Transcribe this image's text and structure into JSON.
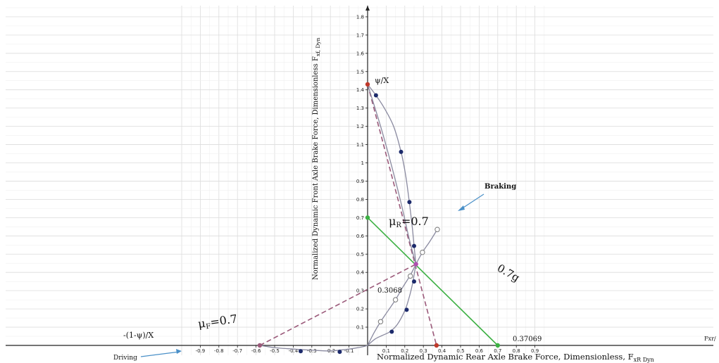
{
  "chart_data": {
    "type": "scatter",
    "xlabel": "Normalized Dynamic Rear Axle Brake Force, Dimensionless, F",
    "xlabel_sub": "xR Dyn",
    "x_axis_end_label": "Fxr/",
    "ylabel": "Normalized Dynamic Front Axle Brake Force, Dimensionless F",
    "ylabel_sub": "xf, Dyn",
    "xlim": [
      -1.0,
      0.97
    ],
    "ylim": [
      -0.1,
      1.82
    ],
    "x_ticks": [
      -0.9,
      -0.8,
      -0.7,
      -0.6,
      -0.5,
      -0.4,
      -0.3,
      -0.2,
      -0.1,
      0.1,
      0.2,
      0.3,
      0.4,
      0.5,
      0.6,
      0.7,
      0.8,
      0.9
    ],
    "x_tick_labels": [
      "-0.9",
      "-0.8",
      "-0.7",
      "-0.6",
      "-0.5",
      "-0.4",
      "-0.3",
      "-0.2",
      "-0.1",
      "0.1",
      "0.2",
      "0.3",
      "0.4",
      "0.5",
      "0.6",
      "0.7",
      "0.8",
      "0.9"
    ],
    "y_ticks": [
      0.1,
      0.2,
      0.3,
      0.4,
      0.5,
      0.6,
      0.7,
      0.8,
      0.9,
      1,
      1.1,
      1.2,
      1.3,
      1.4,
      1.5,
      1.6,
      1.7,
      1.8
    ],
    "y_tick_labels": [
      "0.1",
      "0.2",
      "0.3",
      "0.4",
      "0.5",
      "0.6",
      "0.7",
      "0.8",
      "0.9",
      "1",
      "1.1",
      "1.2",
      "1.3",
      "1.4",
      "1.5",
      "1.6",
      "1.7",
      "1.8"
    ],
    "grid": true,
    "lines": [
      {
        "key": "mu_r_line",
        "style": "solid",
        "color": "#3cb043",
        "points": [
          [
            0,
            0.7
          ],
          [
            0.7,
            0
          ]
        ]
      },
      {
        "key": "front_diag",
        "style": "dashed",
        "color": "#9b5a7a",
        "points": [
          [
            0,
            1.43
          ],
          [
            0.37069,
            0
          ]
        ]
      },
      {
        "key": "mu_f_line",
        "style": "dashed",
        "color": "#9b5a7a",
        "points": [
          [
            -0.58,
            0
          ],
          [
            0.26,
            0.445
          ]
        ]
      }
    ],
    "curves": [
      {
        "key": "braking_upper",
        "color": "#8a8aa0",
        "points": [
          [
            0,
            1.43
          ],
          [
            0.045,
            1.37
          ],
          [
            0.09,
            1.3
          ],
          [
            0.14,
            1.2
          ],
          [
            0.18,
            1.06
          ],
          [
            0.205,
            0.93
          ],
          [
            0.225,
            0.78
          ],
          [
            0.24,
            0.65
          ],
          [
            0.25,
            0.545
          ],
          [
            0.26,
            0.445
          ]
        ]
      },
      {
        "key": "braking_lower",
        "color": "#8a8aa0",
        "points": [
          [
            0,
            1.43
          ],
          [
            0.07,
            1.2
          ],
          [
            0.13,
            0.98
          ],
          [
            0.18,
            0.78
          ],
          [
            0.22,
            0.6
          ],
          [
            0.245,
            0.5
          ],
          [
            0.26,
            0.445
          ]
        ]
      },
      {
        "key": "from_origin",
        "color": "#8a8aa0",
        "points": [
          [
            0,
            0
          ],
          [
            0.04,
            0.035
          ],
          [
            0.08,
            0.055
          ],
          [
            0.12,
            0.075
          ],
          [
            0.16,
            0.115
          ],
          [
            0.2,
            0.19
          ],
          [
            0.22,
            0.25
          ],
          [
            0.24,
            0.33
          ],
          [
            0.26,
            0.445
          ]
        ]
      },
      {
        "key": "open_markers",
        "color": "#8a8aa0",
        "points": [
          [
            0,
            0
          ],
          [
            0.035,
            0.07
          ],
          [
            0.07,
            0.13
          ],
          [
            0.11,
            0.19
          ],
          [
            0.15,
            0.25
          ],
          [
            0.19,
            0.32
          ],
          [
            0.23,
            0.385
          ],
          [
            0.26,
            0.445
          ],
          [
            0.295,
            0.51
          ],
          [
            0.335,
            0.57
          ],
          [
            0.375,
            0.635
          ]
        ]
      },
      {
        "key": "driving_curve",
        "color": "#8a8aa0",
        "points": [
          [
            -0.58,
            0
          ],
          [
            -0.5,
            -0.012
          ],
          [
            -0.4,
            -0.02
          ],
          [
            -0.3,
            -0.026
          ],
          [
            -0.2,
            -0.03
          ],
          [
            -0.1,
            -0.02
          ],
          [
            -0.03,
            -0.008
          ],
          [
            0,
            0
          ]
        ]
      }
    ],
    "filled_markers": [
      [
        0.045,
        1.37
      ],
      [
        0.18,
        1.06
      ],
      [
        0.225,
        0.785
      ],
      [
        0.25,
        0.545
      ],
      [
        0.25,
        0.35
      ],
      [
        0.21,
        0.195
      ],
      [
        0.13,
        0.075
      ],
      [
        -0.15,
        -0.035
      ],
      [
        -0.36,
        -0.032
      ]
    ],
    "open_markers": [
      [
        0.07,
        0.13
      ],
      [
        0.15,
        0.25
      ],
      [
        0.23,
        0.38
      ],
      [
        0.295,
        0.51
      ],
      [
        0.375,
        0.635
      ]
    ],
    "special_points": [
      {
        "key": "psi_x",
        "x": 0,
        "y": 1.43,
        "color": "#c0392b"
      },
      {
        "key": "x_int",
        "x": 0.37069,
        "y": 0,
        "color": "#c0392b"
      },
      {
        "key": "mu_r_int",
        "x": 0,
        "y": 0.7,
        "color": "#3cb043"
      },
      {
        "key": "g_int",
        "x": 0.7,
        "y": 0,
        "color": "#3cb043"
      },
      {
        "key": "neg_int",
        "x": -0.58,
        "y": 0,
        "color": "#9b5a7a"
      },
      {
        "key": "cross",
        "x": 0.26,
        "y": 0.445,
        "color": "#b04fb0"
      }
    ],
    "annotations": {
      "psi_x": "ψ/X",
      "braking": "Braking",
      "mu_r": "μ",
      "mu_r_sub": "R",
      "mu_r_val": "=0.7",
      "accel": "0.7g",
      "val_3068": "0.3068",
      "val_37069": "0.37069",
      "mu_f": "μ",
      "mu_f_sub": "F",
      "mu_f_val": "=0.7",
      "neg_int": "-(1-ψ)/X",
      "driving": "Driving"
    }
  }
}
